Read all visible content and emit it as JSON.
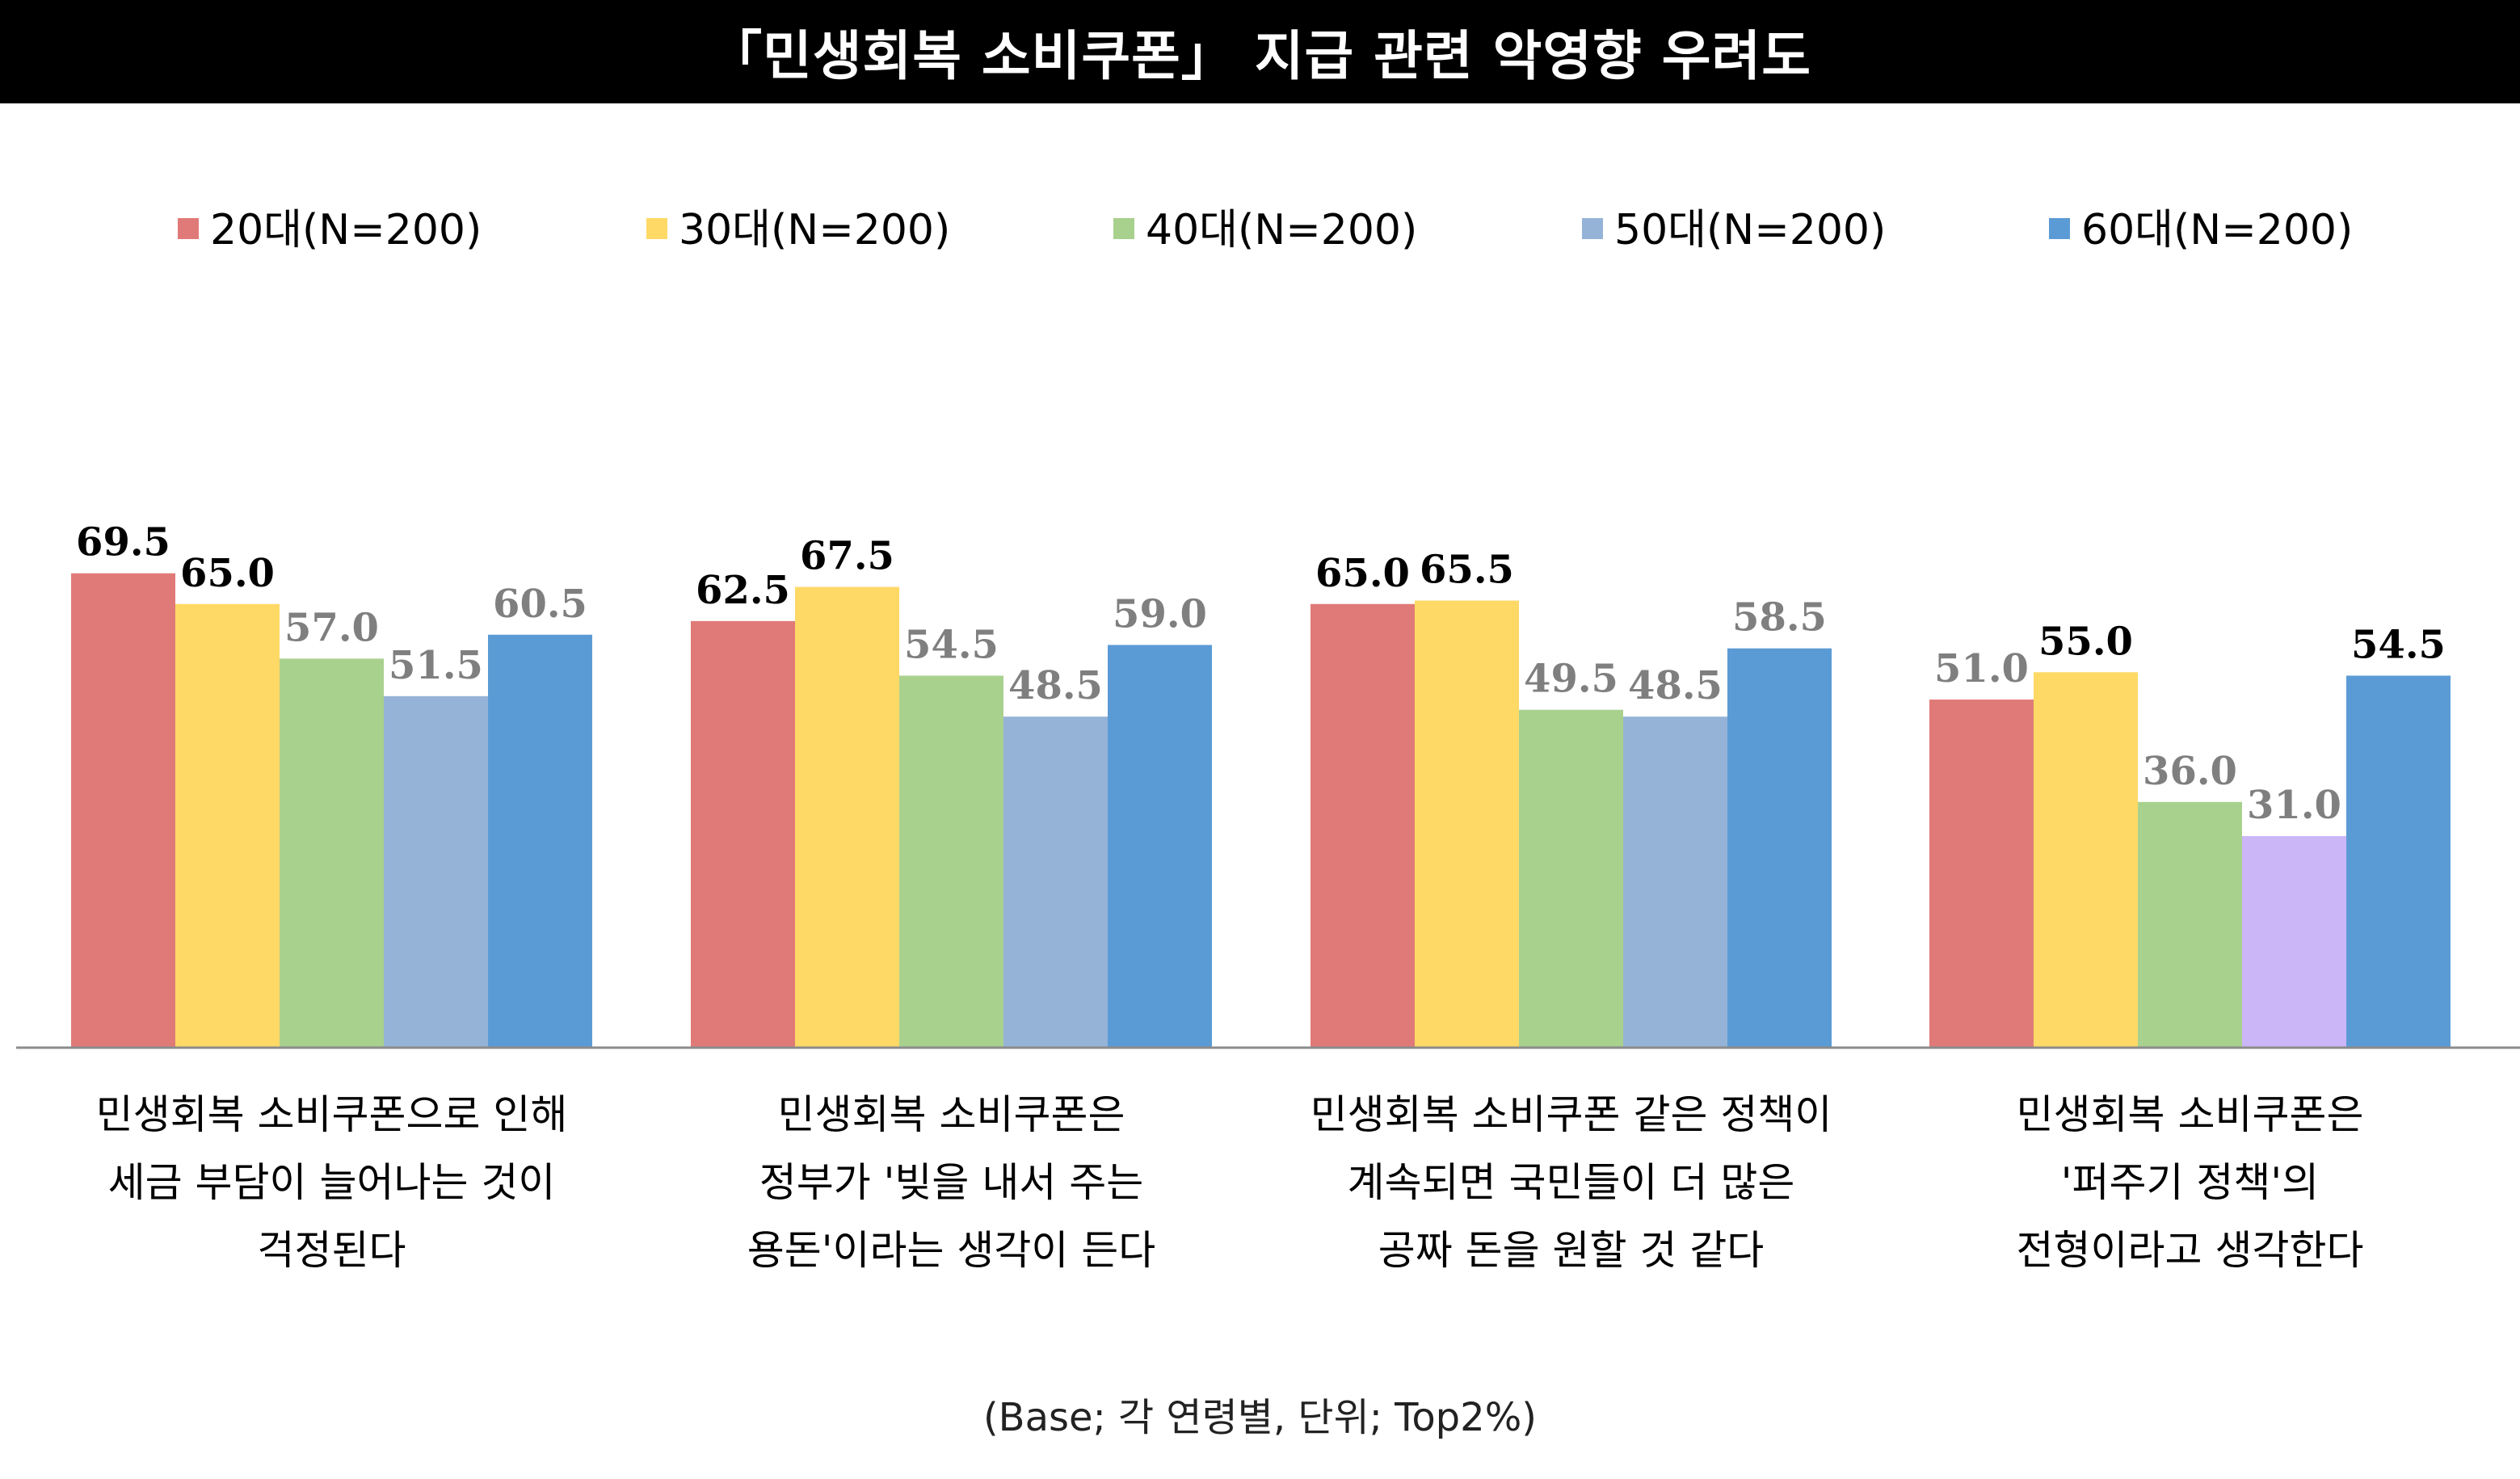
{
  "title": "「민생회복 소비쿠폰」 지급 관련 악영향 우려도",
  "footnote": "(Base; 각 연령별, 단위; Top2%)",
  "chart_data": {
    "type": "bar",
    "categories": [
      [
        "민생회복 소비쿠폰으로 인해",
        "세금 부담이 늘어나는 것이",
        "걱정된다"
      ],
      [
        "민생회복 소비쿠폰은",
        "정부가 '빚을 내서 주는",
        "용돈'이라는 생각이 든다"
      ],
      [
        "민생회복 소비쿠폰 같은 정책이",
        "계속되면 국민들이 더 많은",
        "공짜 돈을 원할 것 같다"
      ],
      [
        "민생회복 소비쿠폰은",
        "'퍼주기 정책'의",
        "전형이라고 생각한다"
      ]
    ],
    "series": [
      {
        "name": "20대(N=200)",
        "color": "#E07A78",
        "values": [
          69.5,
          62.5,
          65.0,
          51.0
        ]
      },
      {
        "name": "30대(N=200)",
        "color": "#FFD966",
        "values": [
          65.0,
          67.5,
          65.5,
          55.0
        ]
      },
      {
        "name": "40대(N=200)",
        "color": "#A9D18E",
        "values": [
          57.0,
          54.5,
          49.5,
          36.0
        ]
      },
      {
        "name": "50대(N=200)",
        "color": "#95B3D7",
        "values": [
          51.5,
          48.5,
          48.5,
          31.0
        ]
      },
      {
        "name": "60대(N=200)",
        "color": "#5B9BD5",
        "values": [
          60.5,
          59.0,
          58.5,
          54.5
        ]
      }
    ],
    "highlight_color": "#CBB7F7",
    "highlight": {
      "series": 3,
      "category": 3
    },
    "label_colors": {
      "top_two": "#000000",
      "others": "#7F7F7F"
    },
    "ylim": [
      0,
      100
    ],
    "grid": false,
    "legend_position": "top"
  }
}
